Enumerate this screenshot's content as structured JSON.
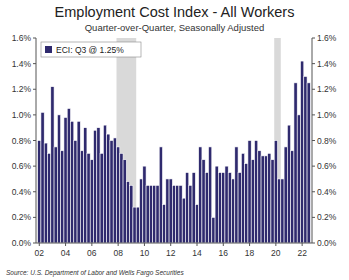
{
  "chart_data": {
    "type": "bar",
    "title": "Employment Cost Index - All Workers",
    "subtitle": "Quarter-over-Quarter, Seasonally Adjusted",
    "source": "Source: U.S. Department of Labor and Wells Fargo Securities",
    "x": [
      2002,
      2002.25,
      2002.5,
      2002.75,
      2003,
      2003.25,
      2003.5,
      2003.75,
      2004,
      2004.25,
      2004.5,
      2004.75,
      2005,
      2005.25,
      2005.5,
      2005.75,
      2006,
      2006.25,
      2006.5,
      2006.75,
      2007,
      2007.25,
      2007.5,
      2007.75,
      2008,
      2008.25,
      2008.5,
      2008.75,
      2009,
      2009.25,
      2009.5,
      2009.75,
      2010,
      2010.25,
      2010.5,
      2010.75,
      2011,
      2011.25,
      2011.5,
      2011.75,
      2012,
      2012.25,
      2012.5,
      2012.75,
      2013,
      2013.25,
      2013.5,
      2013.75,
      2014,
      2014.25,
      2014.5,
      2014.75,
      2015,
      2015.25,
      2015.5,
      2015.75,
      2016,
      2016.25,
      2016.5,
      2016.75,
      2017,
      2017.25,
      2017.5,
      2017.75,
      2018,
      2018.25,
      2018.5,
      2018.75,
      2019,
      2019.25,
      2019.5,
      2019.75,
      2020,
      2020.25,
      2020.5,
      2020.75,
      2021,
      2021.25,
      2021.5,
      2021.75,
      2022,
      2022.25,
      2022.5
    ],
    "series": [
      {
        "name": "ECI: Q3 @ 1.25%",
        "color": "#2f2a6e",
        "values": [
          0.8,
          1.02,
          0.78,
          0.7,
          1.22,
          0.75,
          1.0,
          0.72,
          0.98,
          1.05,
          0.95,
          0.8,
          0.95,
          0.72,
          0.9,
          0.7,
          0.65,
          0.88,
          0.9,
          0.7,
          0.92,
          0.85,
          0.8,
          0.82,
          0.75,
          0.7,
          0.65,
          0.48,
          0.45,
          0.28,
          0.28,
          0.5,
          0.6,
          0.45,
          0.45,
          0.45,
          0.45,
          0.75,
          0.3,
          0.5,
          0.5,
          0.45,
          0.45,
          0.45,
          0.35,
          0.55,
          0.45,
          0.55,
          0.3,
          0.75,
          0.65,
          0.55,
          0.75,
          0.2,
          0.6,
          0.55,
          0.55,
          0.6,
          0.55,
          0.5,
          0.75,
          0.55,
          0.7,
          0.62,
          0.8,
          0.65,
          0.8,
          0.72,
          0.68,
          0.68,
          0.7,
          0.65,
          0.8,
          0.5,
          0.5,
          0.75,
          0.92,
          0.72,
          1.25,
          1.0,
          1.42,
          1.3,
          1.25
        ]
      }
    ],
    "recessions": [
      [
        2008,
        2009.5
      ],
      [
        2020,
        2020.5
      ]
    ],
    "xlim": [
      2001.75,
      2022.75
    ],
    "xticks": [
      {
        "value": 2002,
        "label": "02"
      },
      {
        "value": 2004,
        "label": "04"
      },
      {
        "value": 2006,
        "label": "06"
      },
      {
        "value": 2008,
        "label": "08"
      },
      {
        "value": 2010,
        "label": "10"
      },
      {
        "value": 2012,
        "label": "12"
      },
      {
        "value": 2014,
        "label": "14"
      },
      {
        "value": 2016,
        "label": "16"
      },
      {
        "value": 2018,
        "label": "18"
      },
      {
        "value": 2020,
        "label": "20"
      },
      {
        "value": 2022,
        "label": "22"
      }
    ],
    "ylim": [
      0,
      1.6
    ],
    "yticks": [
      {
        "value": 0,
        "label": "0.0%"
      },
      {
        "value": 0.2,
        "label": "0.2%"
      },
      {
        "value": 0.4,
        "label": "0.4%"
      },
      {
        "value": 0.6,
        "label": "0.6%"
      },
      {
        "value": 0.8,
        "label": "0.8%"
      },
      {
        "value": 1.0,
        "label": "1.0%"
      },
      {
        "value": 1.2,
        "label": "1.2%"
      },
      {
        "value": 1.4,
        "label": "1.4%"
      },
      {
        "value": 1.6,
        "label": "1.6%"
      }
    ],
    "legend": "top-left",
    "grid": false
  }
}
